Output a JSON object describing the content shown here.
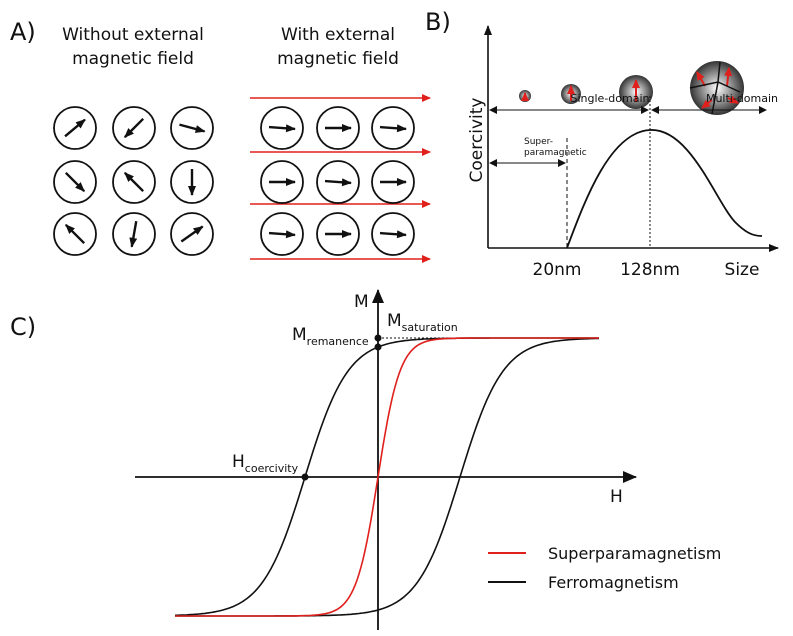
{
  "panels": {
    "a": {
      "label": "A)",
      "left_title": [
        "Without external",
        "magnetic field"
      ],
      "right_title": [
        "With external",
        "magnetic field"
      ]
    },
    "b": {
      "label": "B)",
      "y_axis": "Coercivity",
      "x_axis": "Size",
      "single_domain": "Single-domain",
      "multi_domain": "Multi-domain",
      "superparamagnetic": [
        "Super-",
        "paramagnetic"
      ],
      "sizes": [
        "20nm",
        "128nm"
      ]
    },
    "c": {
      "label": "C)",
      "y_axis": "M",
      "x_axis": "H",
      "saturation": {
        "symbol": "M",
        "subscript": "saturation"
      },
      "remanence": {
        "symbol": "M",
        "subscript": "remanence"
      },
      "coercivity": {
        "symbol": "H",
        "subscript": "coercivity"
      },
      "legend": [
        {
          "name": "Superparamagnetism",
          "color": "#e0201c"
        },
        {
          "name": "Ferromagnetism",
          "color": "#111111"
        }
      ]
    }
  }
}
